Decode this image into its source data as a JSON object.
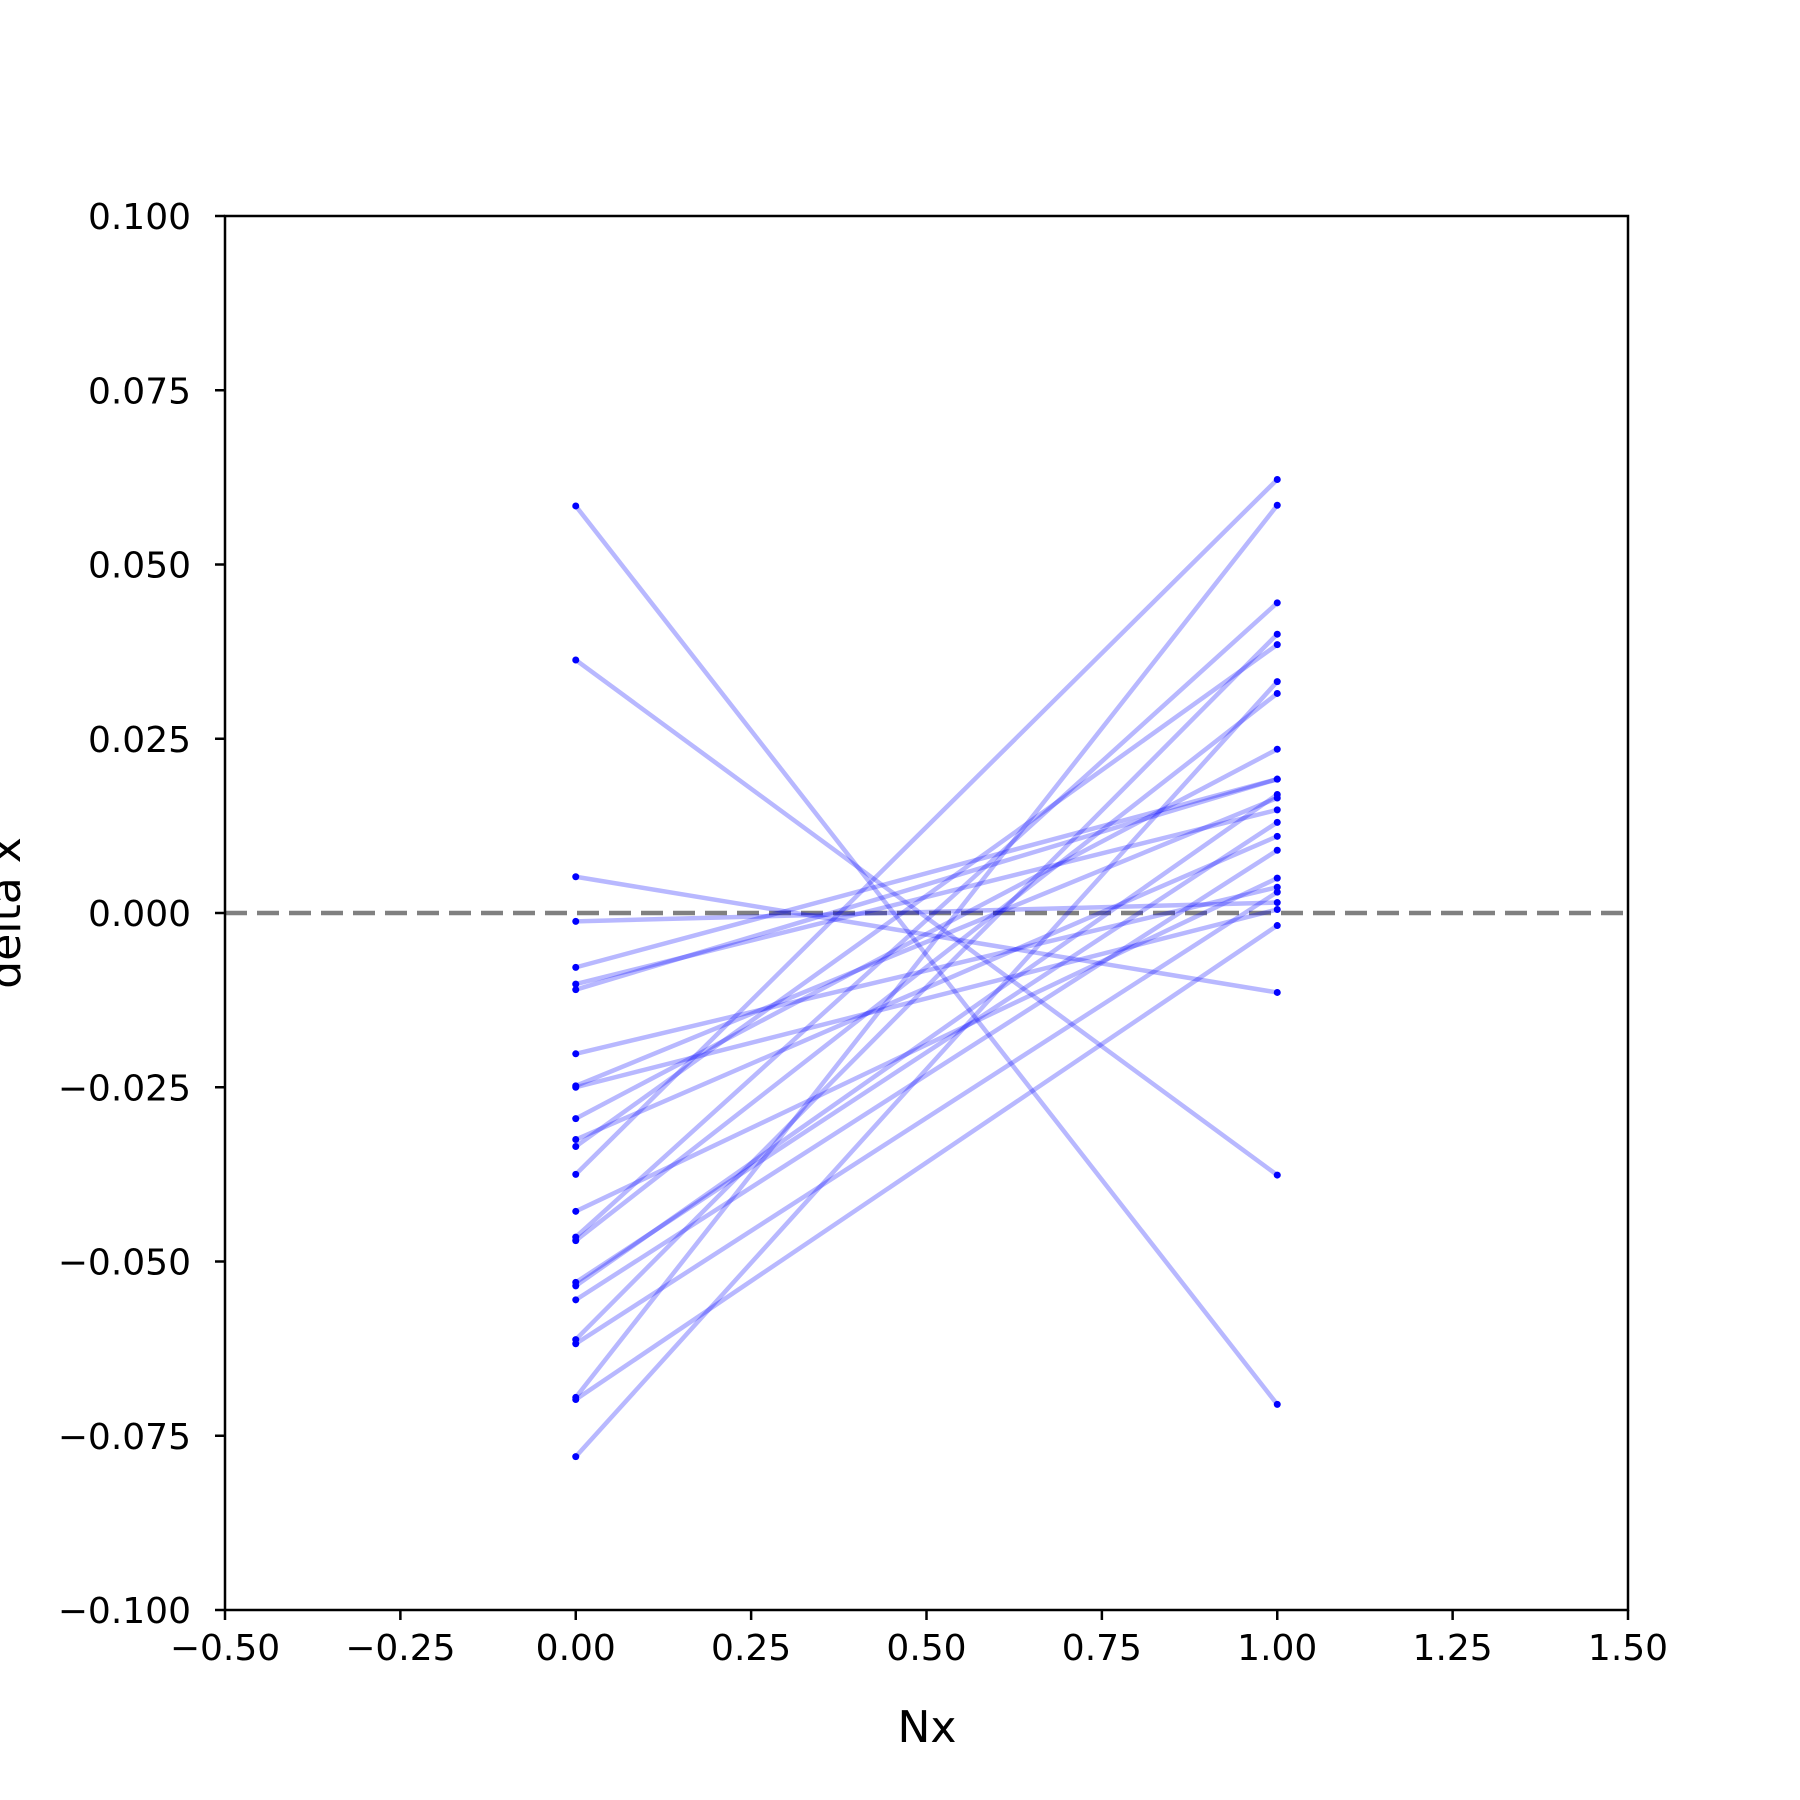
{
  "chart_data": {
    "type": "line",
    "title": "",
    "xlabel": "Nx",
    "ylabel": "delta x",
    "xlim": [
      -0.5,
      1.5
    ],
    "ylim": [
      -0.1,
      0.1
    ],
    "xticks": [
      -0.5,
      -0.25,
      0.0,
      0.25,
      0.5,
      0.75,
      1.0,
      1.25,
      1.5
    ],
    "xtick_labels": [
      "−0.50",
      "−0.25",
      "0.00",
      "0.25",
      "0.50",
      "0.75",
      "1.00",
      "1.25",
      "1.50"
    ],
    "yticks": [
      -0.1,
      -0.075,
      -0.05,
      -0.025,
      0.0,
      0.025,
      0.05,
      0.075,
      0.1
    ],
    "ytick_labels": [
      "−0.100",
      "−0.075",
      "−0.050",
      "−0.025",
      "0.000",
      "0.025",
      "0.050",
      "0.075",
      "0.100"
    ],
    "grid": false,
    "legend": "none",
    "reference_line": {
      "y": 0.0,
      "style": "dashed",
      "color": "#808080"
    },
    "line_color": "#0000ff",
    "line_opacity": 0.28,
    "marker_color": "#0000ff",
    "pairs": [
      {
        "x": [
          0,
          1
        ],
        "y": [
          0.0584,
          -0.0705
        ]
      },
      {
        "x": [
          0,
          1
        ],
        "y": [
          0.0363,
          -0.0376
        ]
      },
      {
        "x": [
          0,
          1
        ],
        "y": [
          0.0052,
          -0.0114
        ]
      },
      {
        "x": [
          0,
          1
        ],
        "y": [
          -0.0012,
          0.0015
        ]
      },
      {
        "x": [
          0,
          1
        ],
        "y": [
          -0.0078,
          0.0192
        ]
      },
      {
        "x": [
          0,
          1
        ],
        "y": [
          -0.0102,
          0.0148
        ]
      },
      {
        "x": [
          0,
          1
        ],
        "y": [
          -0.011,
          0.0192
        ]
      },
      {
        "x": [
          0,
          1
        ],
        "y": [
          -0.0202,
          0.0037
        ]
      },
      {
        "x": [
          0,
          1
        ],
        "y": [
          -0.0248,
          0.0165
        ]
      },
      {
        "x": [
          0,
          1
        ],
        "y": [
          -0.025,
          0.0005
        ]
      },
      {
        "x": [
          0,
          1
        ],
        "y": [
          -0.0295,
          0.0235
        ]
      },
      {
        "x": [
          0,
          1
        ],
        "y": [
          -0.0325,
          0.011
        ]
      },
      {
        "x": [
          0,
          1
        ],
        "y": [
          -0.0335,
          0.0385
        ]
      },
      {
        "x": [
          0,
          1
        ],
        "y": [
          -0.0375,
          0.0622
        ]
      },
      {
        "x": [
          0,
          1
        ],
        "y": [
          -0.0428,
          0.005
        ]
      },
      {
        "x": [
          0,
          1
        ],
        "y": [
          -0.0465,
          0.0445
        ]
      },
      {
        "x": [
          0,
          1
        ],
        "y": [
          -0.047,
          0.0315
        ]
      },
      {
        "x": [
          0,
          1
        ],
        "y": [
          -0.053,
          0.013
        ]
      },
      {
        "x": [
          0,
          1
        ],
        "y": [
          -0.0535,
          0.017
        ]
      },
      {
        "x": [
          0,
          1
        ],
        "y": [
          -0.0555,
          0.009
        ]
      },
      {
        "x": [
          0,
          1
        ],
        "y": [
          -0.0612,
          0.04
        ]
      },
      {
        "x": [
          0,
          1
        ],
        "y": [
          -0.0618,
          0.003
        ]
      },
      {
        "x": [
          0,
          1
        ],
        "y": [
          -0.0695,
          0.0585
        ]
      },
      {
        "x": [
          0,
          1
        ],
        "y": [
          -0.0698,
          -0.0018
        ]
      },
      {
        "x": [
          0,
          1
        ],
        "y": [
          -0.078,
          0.0332
        ]
      }
    ]
  }
}
